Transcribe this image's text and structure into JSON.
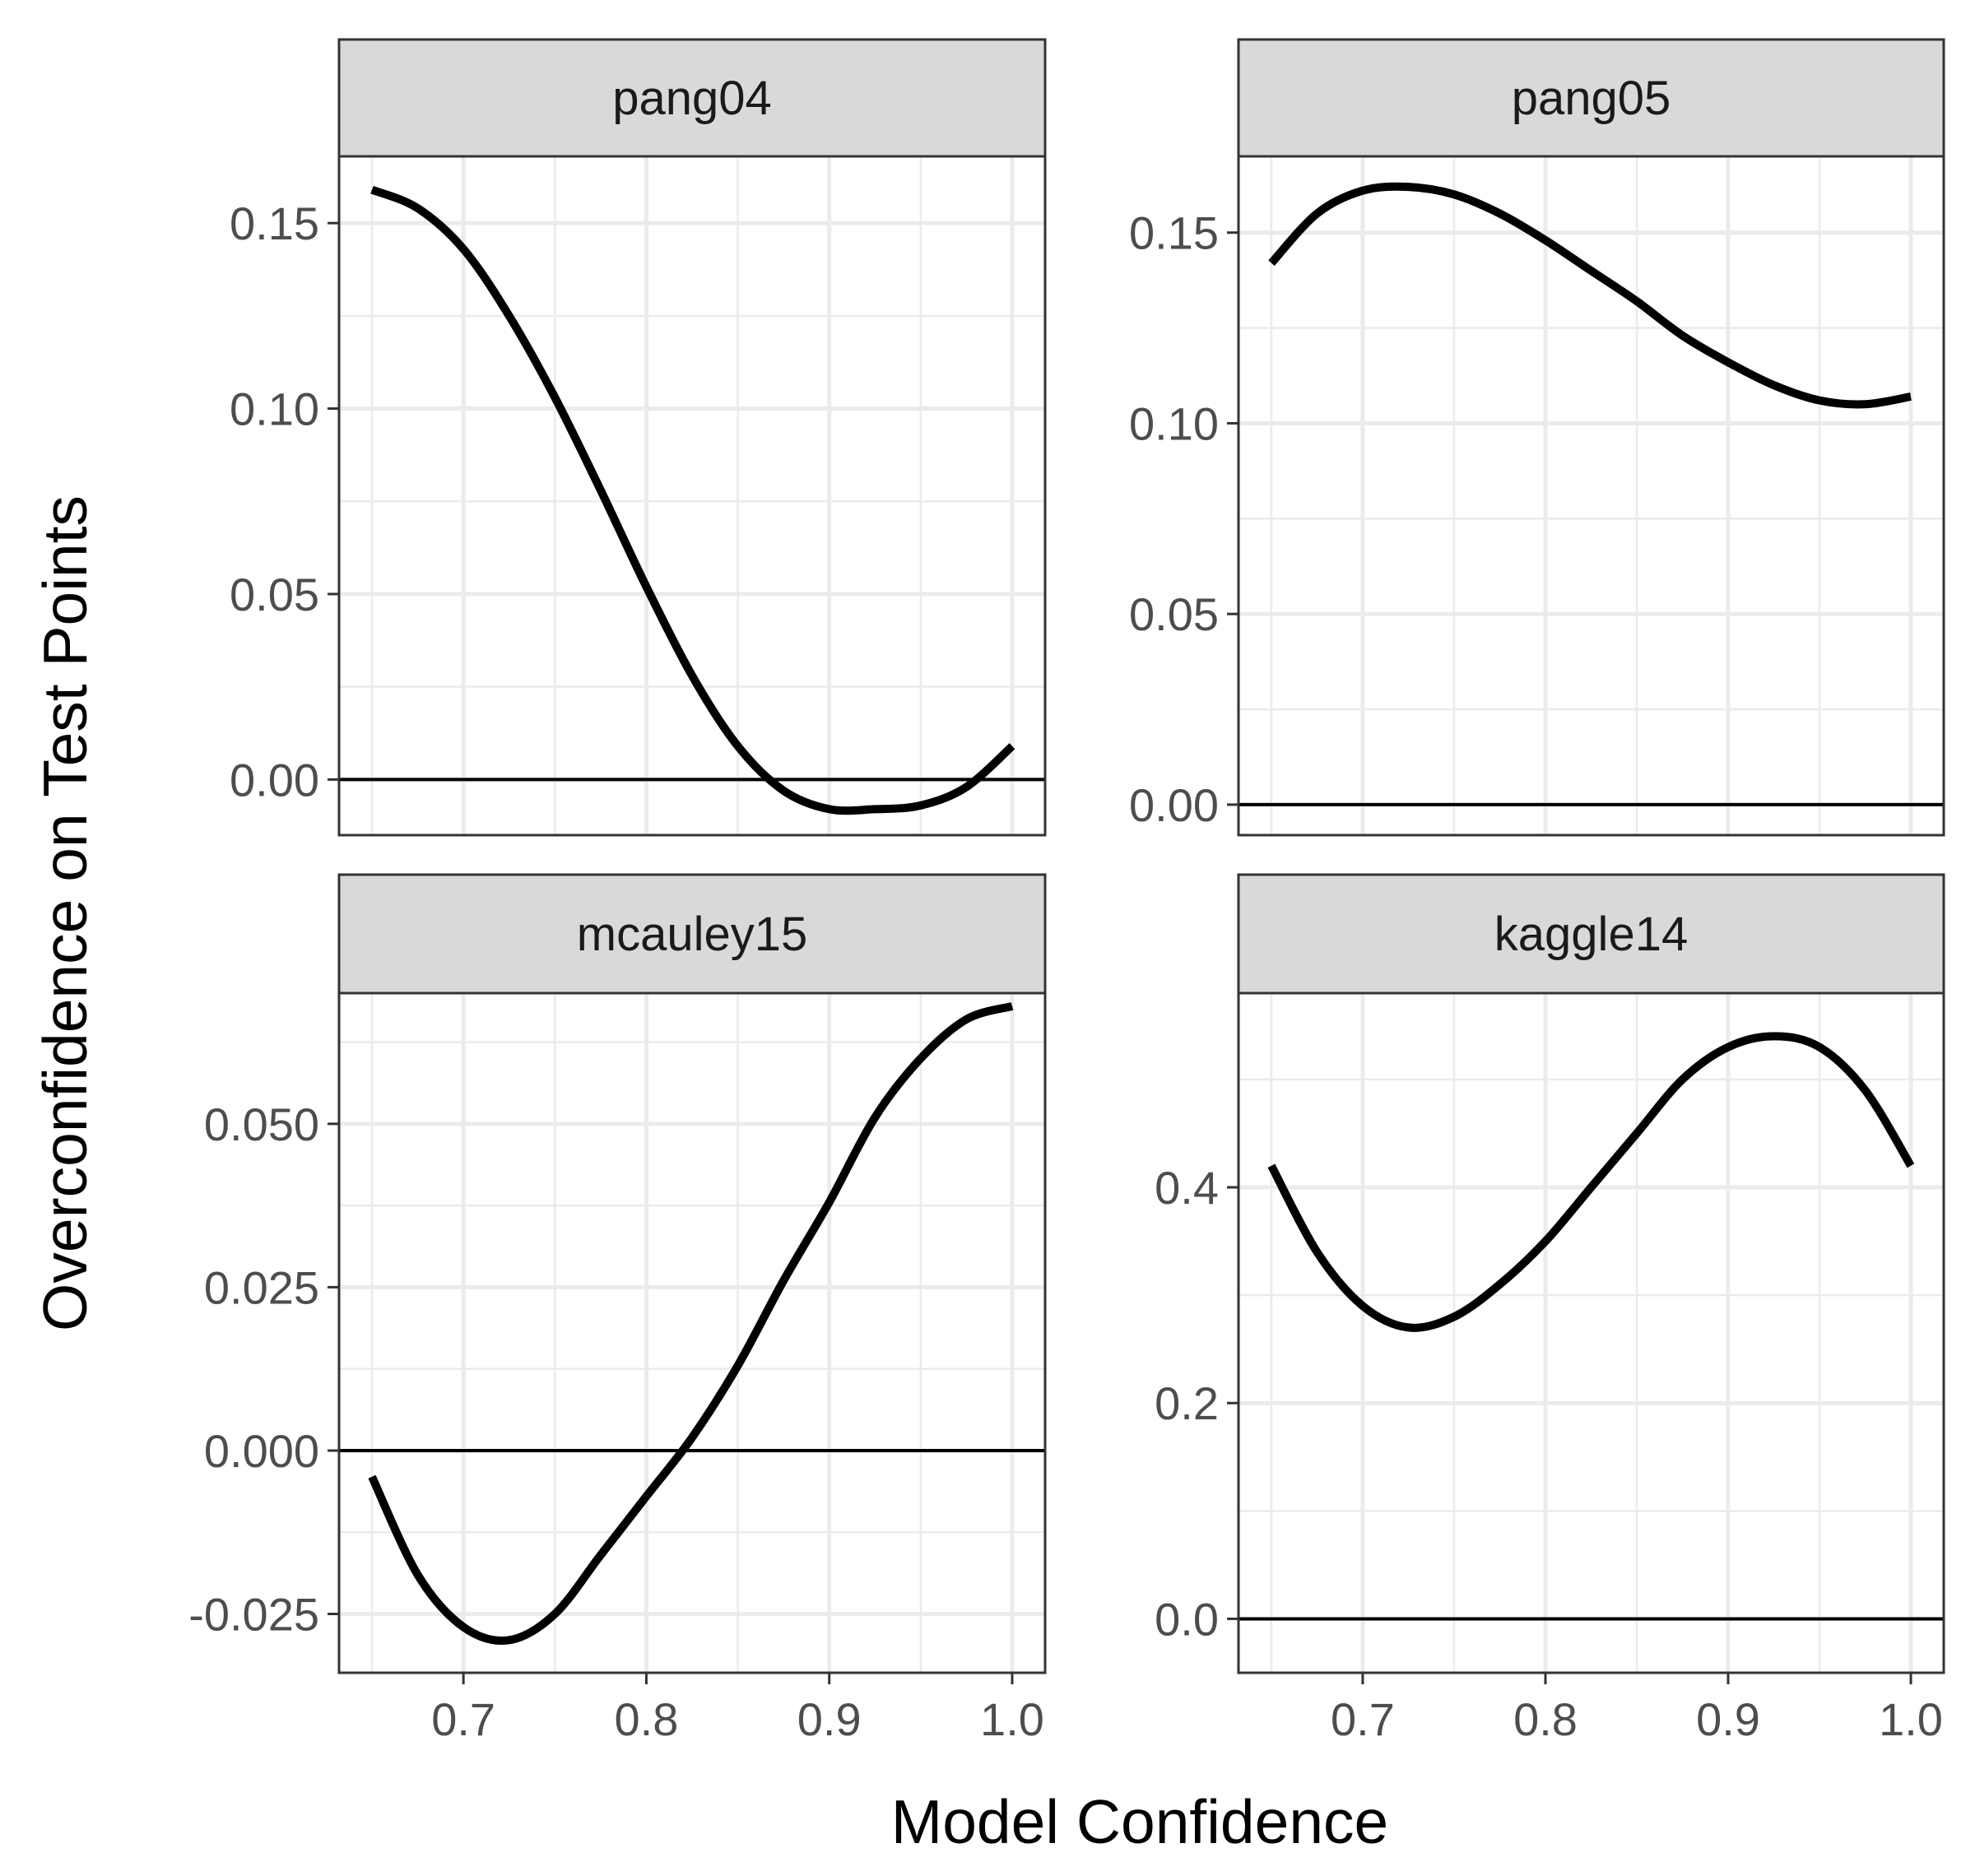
{
  "chart_data": {
    "type": "line",
    "layout": "facet-grid 2x2",
    "xlabel": "Model Confidence",
    "ylabel": "Overconfidence on Test Points",
    "x_ticks": [
      "0.7",
      "0.8",
      "0.9",
      "1.0"
    ],
    "xlim": [
      0.632,
      1.018
    ],
    "grid": true,
    "reference_line_y": 0,
    "line_color": "#000000",
    "strip_fill": "#d9d9d9",
    "grid_color": "#ebebeb",
    "panels": [
      {
        "label": "pang04",
        "ylim": [
          -0.015,
          0.168
        ],
        "y_ticks": [
          0.0,
          0.05,
          0.1,
          0.15
        ],
        "y_tick_labels": [
          "0.00",
          "0.05",
          "0.10",
          "0.15"
        ],
        "x": [
          0.65,
          0.675,
          0.7,
          0.725,
          0.75,
          0.775,
          0.8,
          0.825,
          0.85,
          0.875,
          0.9,
          0.925,
          0.95,
          0.975,
          1.0
        ],
        "y": [
          0.159,
          0.154,
          0.143,
          0.125,
          0.103,
          0.078,
          0.052,
          0.028,
          0.009,
          -0.003,
          -0.008,
          -0.008,
          -0.007,
          -0.002,
          0.009
        ]
      },
      {
        "label": "pang05",
        "ylim": [
          -0.008,
          0.17
        ],
        "y_ticks": [
          0.0,
          0.05,
          0.1,
          0.15
        ],
        "y_tick_labels": [
          "0.00",
          "0.05",
          "0.10",
          "0.15"
        ],
        "x": [
          0.65,
          0.675,
          0.7,
          0.725,
          0.75,
          0.775,
          0.8,
          0.825,
          0.85,
          0.875,
          0.9,
          0.925,
          0.95,
          0.975,
          1.0
        ],
        "y": [
          0.142,
          0.155,
          0.161,
          0.162,
          0.16,
          0.155,
          0.148,
          0.14,
          0.132,
          0.123,
          0.116,
          0.11,
          0.106,
          0.105,
          0.107
        ]
      },
      {
        "label": "mcauley15",
        "ylim": [
          -0.034,
          0.07
        ],
        "y_ticks": [
          -0.025,
          0.0,
          0.025,
          0.05
        ],
        "y_tick_labels": [
          "-0.025",
          "0.000",
          "0.025",
          "0.050"
        ],
        "x": [
          0.65,
          0.675,
          0.7,
          0.725,
          0.75,
          0.775,
          0.8,
          0.825,
          0.85,
          0.875,
          0.9,
          0.925,
          0.95,
          0.975,
          1.0
        ],
        "y": [
          -0.004,
          -0.019,
          -0.027,
          -0.029,
          -0.025,
          -0.016,
          -0.007,
          0.002,
          0.013,
          0.026,
          0.038,
          0.051,
          0.06,
          0.066,
          0.068
        ]
      },
      {
        "label": "kaggle14",
        "ylim": [
          -0.05,
          0.58
        ],
        "y_ticks": [
          0.0,
          0.2,
          0.4
        ],
        "y_tick_labels": [
          "0.0",
          "0.2",
          "0.4"
        ],
        "x": [
          0.65,
          0.675,
          0.7,
          0.725,
          0.75,
          0.775,
          0.8,
          0.825,
          0.85,
          0.875,
          0.9,
          0.925,
          0.95,
          0.975,
          1.0
        ],
        "y": [
          0.42,
          0.34,
          0.29,
          0.27,
          0.28,
          0.31,
          0.35,
          0.4,
          0.45,
          0.5,
          0.53,
          0.54,
          0.53,
          0.49,
          0.42
        ]
      }
    ]
  }
}
